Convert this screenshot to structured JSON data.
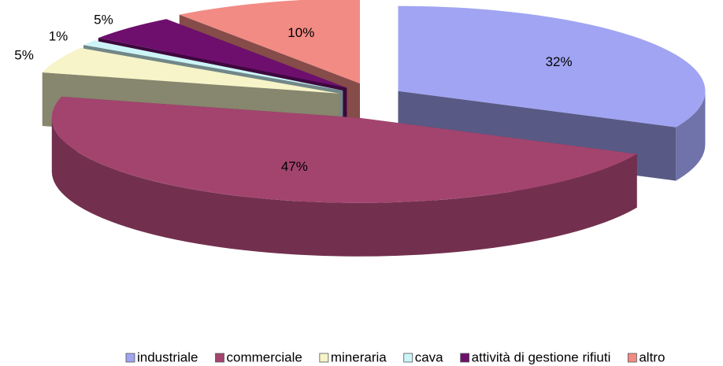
{
  "chart_data": {
    "type": "pie",
    "categories": [
      "industriale",
      "commerciale",
      "mineraria",
      "cava",
      "attività di gestione rifiuti",
      "altro"
    ],
    "values": [
      32,
      47,
      5,
      1,
      5,
      10
    ],
    "value_labels": [
      "32%",
      "47%",
      "5%",
      "1%",
      "5%",
      "10%"
    ],
    "colors": [
      "#a0a4f2",
      "#a3446f",
      "#f6f4c8",
      "#cdf5f7",
      "#6e0f6e",
      "#f28b84"
    ],
    "legend": "bottom"
  }
}
